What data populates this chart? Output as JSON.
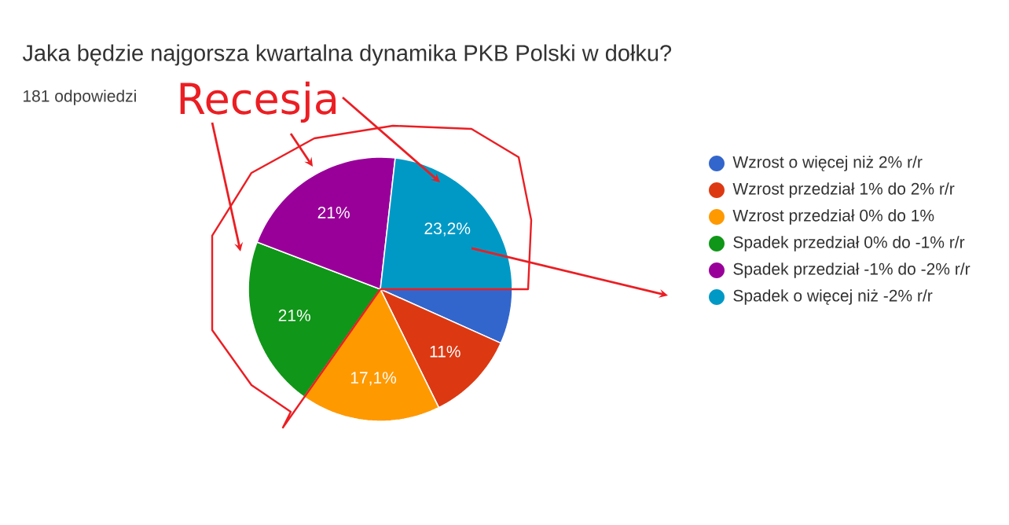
{
  "chart_data": {
    "type": "pie",
    "title": "Jaka będzie najgorsza kwartalna dynamika PKB Polski w dołku?",
    "subtitle": "181 odpowiedzi",
    "categories": [
      "Wzrost o więcej niż 2% r/r",
      "Wzrost przedział 1% do 2% r/r",
      "Wzrost przedział 0% do 1%",
      "Spadek przedział 0% do -1% r/r",
      "Spadek przedział -1% do -2% r/r",
      "Spadek o więcej niż -2% r/r"
    ],
    "values": [
      6.7,
      11,
      17.1,
      21,
      21,
      23.2
    ],
    "colors": [
      "#3366cc",
      "#dc3912",
      "#ff9900",
      "#109618",
      "#990099",
      "#0099c6"
    ],
    "value_labels": [
      null,
      "11%",
      "17,1%",
      "21%",
      "21%",
      "23,2%"
    ],
    "legend": "right",
    "annotations": [
      "Recesja"
    ]
  }
}
